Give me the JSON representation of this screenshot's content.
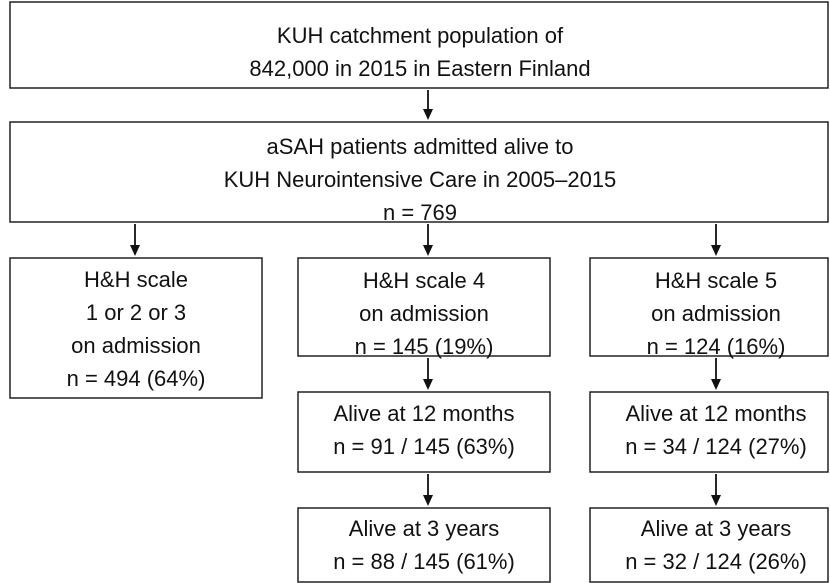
{
  "nodes": [
    {
      "lines": [
        "KUH catchment population of",
        "842,000 in 2015 in Eastern Finland"
      ]
    },
    {
      "lines": [
        "aSAH patients admitted alive to",
        "KUH Neurointensive Care in 2005–2015",
        "n = 769"
      ]
    },
    {
      "lines": [
        "H&H scale",
        "1 or 2 or 3",
        "on admission",
        "n = 494 (64%)"
      ]
    },
    {
      "lines": [
        "H&H scale 4",
        "on admission",
        "n = 145 (19%)"
      ]
    },
    {
      "lines": [
        "H&H scale 5",
        "on admission",
        "n = 124 (16%)"
      ]
    },
    {
      "lines": [
        "Alive at 12 months",
        "n = 91 / 145 (63%)"
      ]
    },
    {
      "lines": [
        "Alive at 12 months",
        "n = 34 / 124 (27%)"
      ]
    },
    {
      "lines": [
        "Alive at 3 years",
        "n = 88 / 145 (61%)"
      ]
    },
    {
      "lines": [
        "Alive at 3 years",
        "n = 32 / 124 (26%)"
      ]
    }
  ]
}
